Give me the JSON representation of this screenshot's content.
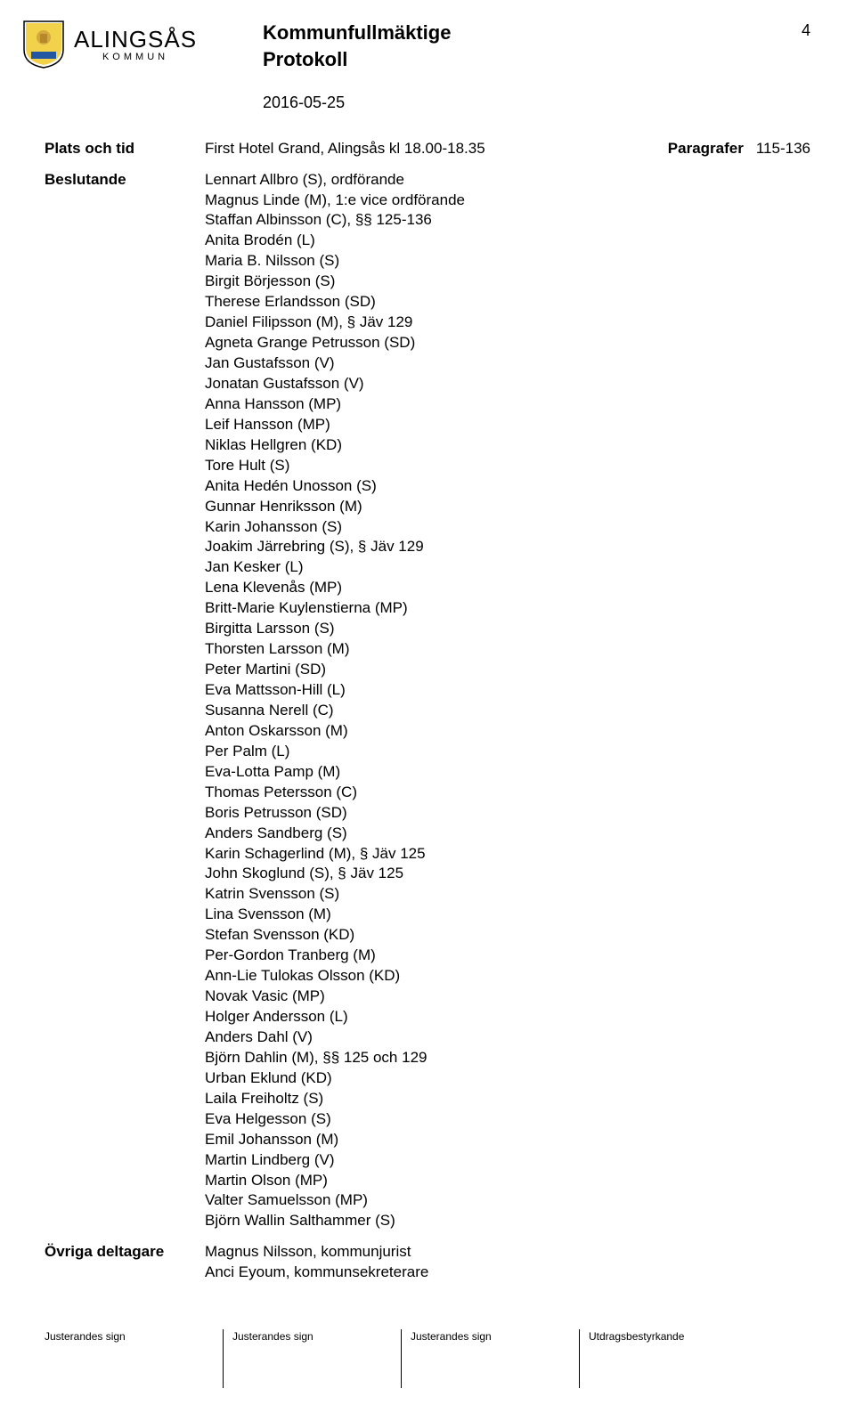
{
  "logo": {
    "main": "ALINGSÅS",
    "sub": "KOMMUN"
  },
  "header": {
    "title": "Kommunfullmäktige",
    "subtitle": "Protokoll",
    "date": "2016-05-25",
    "page_number": "4"
  },
  "plats": {
    "label": "Plats och tid",
    "value": "First Hotel Grand, Alingsås kl 18.00-18.35",
    "paragrafer_label": "Paragrafer",
    "paragrafer_value": "115-136"
  },
  "beslutande": {
    "label": "Beslutande",
    "attendees": [
      "Lennart Allbro (S), ordförande",
      "Magnus Linde (M), 1:e vice ordförande",
      "Staffan Albinsson (C), §§ 125-136",
      "Anita Brodén (L)",
      "Maria B. Nilsson (S)",
      "Birgit Börjesson (S)",
      "Therese Erlandsson (SD)",
      "Daniel Filipsson (M), § Jäv 129",
      "Agneta Grange Petrusson (SD)",
      "Jan Gustafsson (V)",
      "Jonatan Gustafsson (V)",
      "Anna Hansson (MP)",
      "Leif Hansson (MP)",
      "Niklas Hellgren (KD)",
      "Tore Hult (S)",
      "Anita Hedén Unosson (S)",
      "Gunnar Henriksson (M)",
      "Karin Johansson (S)",
      "Joakim Järrebring (S), § Jäv 129",
      "Jan Kesker (L)",
      "Lena Klevenås (MP)",
      "Britt-Marie Kuylenstierna (MP)",
      "Birgitta Larsson (S)",
      "Thorsten Larsson (M)",
      "Peter Martini (SD)",
      "Eva Mattsson-Hill (L)",
      "Susanna Nerell (C)",
      "Anton Oskarsson (M)",
      "Per Palm (L)",
      "Eva-Lotta Pamp (M)",
      "Thomas Petersson (C)",
      "Boris Petrusson (SD)",
      "Anders Sandberg (S)",
      "Karin Schagerlind (M), § Jäv 125",
      "John Skoglund (S), § Jäv 125",
      "Katrin Svensson (S)",
      "Lina Svensson (M)",
      "Stefan Svensson (KD)",
      "Per-Gordon Tranberg (M)",
      "Ann-Lie Tulokas Olsson (KD)",
      "Novak Vasic (MP)",
      "Holger Andersson (L)",
      "Anders Dahl (V)",
      "Björn Dahlin (M), §§ 125 och 129",
      "Urban Eklund (KD)",
      "Laila Freiholtz (S)",
      "Eva Helgesson (S)",
      "Emil Johansson (M)",
      "Martin Lindberg (V)",
      "Martin Olson (MP)",
      "Valter Samuelsson (MP)",
      "Björn Wallin Salthammer (S)"
    ]
  },
  "ovriga": {
    "label": "Övriga deltagare",
    "persons": [
      "Magnus Nilsson, kommunjurist",
      "Anci Eyoum, kommunsekreterare"
    ]
  },
  "footer": {
    "c1": "Justerandes sign",
    "c2": "Justerandes sign",
    "c3": "Justerandes sign",
    "c4": "Utdragsbestyrkande"
  }
}
